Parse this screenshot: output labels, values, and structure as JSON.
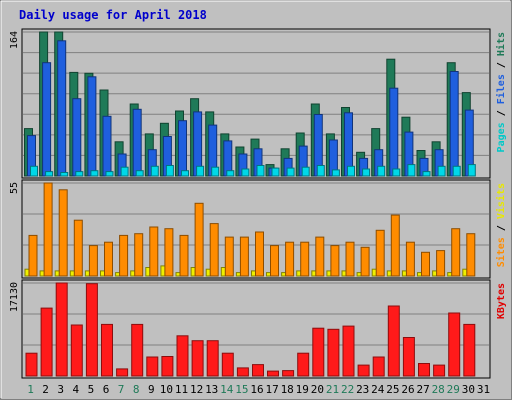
{
  "chart_data": {
    "type": "bar",
    "title": "Daily usage for April 2018",
    "x": [
      "1",
      "2",
      "3",
      "4",
      "5",
      "6",
      "7",
      "8",
      "9",
      "10",
      "11",
      "12",
      "13",
      "14",
      "15",
      "16",
      "17",
      "18",
      "19",
      "20",
      "21",
      "22",
      "23",
      "24",
      "25",
      "26",
      "27",
      "28",
      "29",
      "30",
      "31"
    ],
    "weekend_days": [
      "1",
      "7",
      "8",
      "14",
      "15",
      "21",
      "22",
      "28",
      "29"
    ],
    "panels": [
      {
        "name": "top",
        "ymax_label": "164",
        "ymax": 164,
        "ylabel_parts": [
          "Pages",
          "Files",
          "Hits"
        ],
        "ylabel_colors": [
          "#00c8c8",
          "#1f5fde",
          "#1f7a58"
        ],
        "series": [
          {
            "name": "Hits",
            "color": "#1f7a58",
            "values": [
              54,
              164,
              164,
              118,
              117,
              98,
              39,
              82,
              48,
              60,
              74,
              88,
              73,
              48,
              33,
              42,
              13,
              31,
              49,
              82,
              48,
              78,
              27,
              54,
              133,
              67,
              29,
              39,
              129,
              95,
              0
            ]
          },
          {
            "name": "Files",
            "color": "#1f5fde",
            "values": [
              46,
              129,
              154,
              88,
              113,
              68,
              25,
              76,
              30,
              45,
              63,
              73,
              58,
              40,
              25,
              31,
              9,
              20,
              34,
              70,
              41,
              72,
              20,
              30,
              100,
              50,
              20,
              30,
              119,
              75,
              0
            ]
          },
          {
            "name": "Pages",
            "color": "#00d8e8",
            "values": [
              11,
              5,
              4,
              5,
              6,
              5,
              10,
              6,
              11,
              12,
              6,
              11,
              10,
              6,
              8,
              12,
              9,
              9,
              10,
              12,
              7,
              11,
              8,
              11,
              8,
              13,
              5,
              11,
              11,
              13,
              0
            ]
          }
        ]
      },
      {
        "name": "middle",
        "ymax_label": "55",
        "ymax": 55,
        "ylabel_parts": [
          "Sites",
          "Visits"
        ],
        "ylabel_colors": [
          "#ff8c00",
          "#e8e800"
        ],
        "series": [
          {
            "name": "Visits",
            "color": "#f0f000",
            "values": [
              4,
              3,
              3,
              3,
              3,
              3,
              2,
              3,
              5,
              6,
              2,
              5,
              4,
              5,
              2,
              3,
              2,
              2,
              3,
              3,
              3,
              3,
              2,
              4,
              3,
              3,
              2,
              3,
              2,
              4,
              0
            ]
          },
          {
            "name": "Sites",
            "color": "#ff8c00",
            "values": [
              24,
              55,
              51,
              33,
              18,
              20,
              24,
              25,
              29,
              28,
              24,
              43,
              31,
              23,
              23,
              26,
              18,
              20,
              20,
              23,
              18,
              20,
              17,
              27,
              36,
              20,
              14,
              15,
              28,
              25,
              0
            ]
          }
        ]
      },
      {
        "name": "bottom",
        "ymax_label": "17130",
        "ymax": 17130,
        "ylabel_parts": [
          "KBytes"
        ],
        "ylabel_colors": [
          "#e00000"
        ],
        "series": [
          {
            "name": "KBytes",
            "color": "#ff1a1a",
            "values": [
              4200,
              12500,
              17130,
              9400,
              17000,
              9500,
              1300,
              9500,
              3500,
              3600,
              7400,
              6500,
              6500,
              4200,
              1500,
              2100,
              900,
              1000,
              4200,
              8800,
              8600,
              9200,
              2000,
              3500,
              12900,
              7100,
              2300,
              2000,
              11600,
              9500,
              0
            ]
          }
        ]
      }
    ]
  }
}
